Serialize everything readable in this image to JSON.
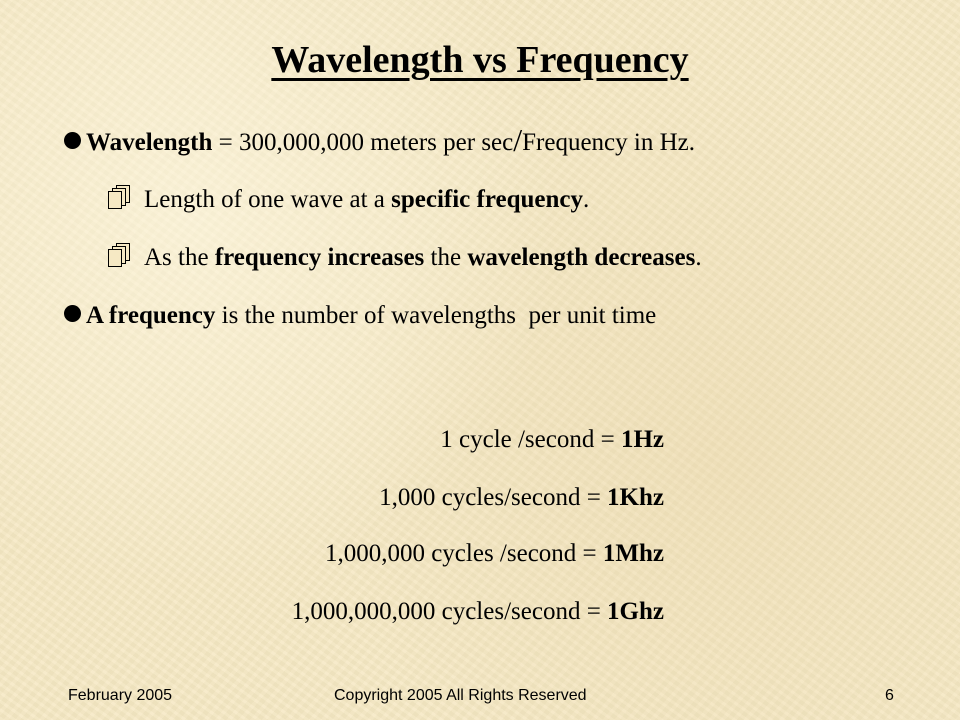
{
  "title": "Wavelength vs Frequency",
  "bullets": {
    "b1": {
      "bold": "Wavelength",
      "text": " = 300,000,000 meters per sec",
      "slash": "/",
      "tail": "Frequency in Hz."
    },
    "s1": {
      "pre": "Length of one wave at a ",
      "bold": "specific frequency",
      "post": "."
    },
    "s2": {
      "pre": "As the ",
      "bold1": "frequency increases",
      "mid": " the ",
      "bold2": "wavelength decreases",
      "post": "."
    },
    "b2": {
      "bold": "A frequency",
      "text": " is the number of wavelengths  per unit time"
    }
  },
  "icons": {
    "bullet": "filled-circle",
    "sub_bullet": "stacked-pages-icon"
  },
  "conversions": [
    {
      "left": "1 cycle /second = ",
      "unit": "1Hz"
    },
    {
      "left": "1,000 cycles/second = ",
      "unit": "1Khz"
    },
    {
      "left": "1,000,000 cycles /second = ",
      "unit": "1Mhz"
    },
    {
      "left": "1,000,000,000 cycles/second = ",
      "unit": "1Ghz"
    }
  ],
  "footer": {
    "date": "February 2005",
    "copyright": "Copyright 2005 All Rights Reserved",
    "page": "6"
  },
  "colors": {
    "background": "#f6e9c4",
    "text": "#000000"
  }
}
